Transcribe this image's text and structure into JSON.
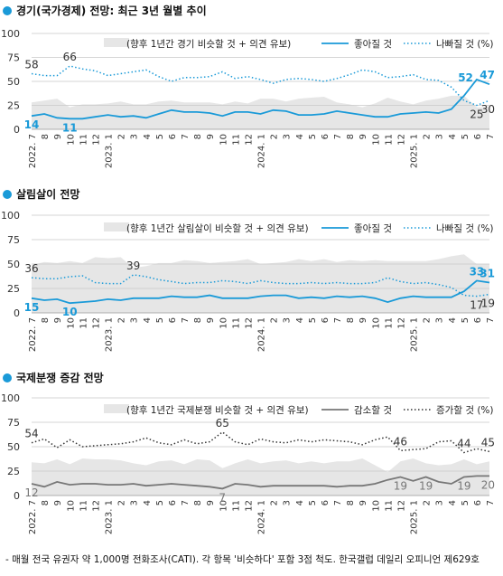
{
  "footnote": "- 매월 전국 유권자 약 1,000명 전화조사(CATI). 각 항목 '비슷하다' 포함 3점 척도. 한국갤럽 데일리 오피니언 제629호",
  "colors": {
    "blue": "#1a9ad8",
    "gray": "#777777",
    "dark": "#333333",
    "band": "#e6e6e6",
    "grid": "#c8c8c8"
  },
  "x_ticks": [
    "2022. 7",
    "8",
    "9",
    "10",
    "11",
    "12",
    "2023. 1",
    "2",
    "3",
    "4",
    "5",
    "6",
    "7",
    "8",
    "9",
    "10",
    "11",
    "12",
    "2024. 1",
    "2",
    "3",
    "4",
    "5",
    "6",
    "7",
    "8",
    "9",
    "10",
    "11",
    "12",
    "2025. 1",
    "2",
    "3",
    "4",
    "5",
    "6",
    "7"
  ],
  "chart_data": [
    {
      "type": "line",
      "title": "경기(국가경제) 전망:  최근 3년 월별 추이",
      "y_ticks": [
        "100",
        "75",
        "50",
        "25",
        "0"
      ],
      "ylim": [
        0,
        100
      ],
      "legend": {
        "band": "(향후 1년간 경기 비슷할 것 + 의견 유보)",
        "solid": "좋아질 것",
        "dotted": "나빠질 것 (%)"
      },
      "solid_color": "blue",
      "dotted_color": "blue",
      "solid": [
        14,
        16,
        12,
        11,
        11,
        13,
        15,
        13,
        14,
        12,
        16,
        20,
        18,
        18,
        17,
        14,
        18,
        18,
        16,
        20,
        19,
        15,
        15,
        16,
        19,
        17,
        15,
        13,
        13,
        16,
        17,
        18,
        17,
        21,
        35,
        52,
        47
      ],
      "dotted": [
        58,
        56,
        56,
        66,
        63,
        61,
        56,
        58,
        60,
        62,
        55,
        50,
        54,
        54,
        55,
        60,
        53,
        55,
        52,
        48,
        52,
        53,
        52,
        50,
        53,
        57,
        62,
        60,
        54,
        55,
        57,
        52,
        51,
        44,
        30,
        25,
        30
      ],
      "band_top": [
        28,
        30,
        32,
        23,
        26,
        26,
        27,
        29,
        26,
        26,
        29,
        30,
        28,
        28,
        28,
        26,
        29,
        27,
        32,
        32,
        29,
        32,
        33,
        34,
        28,
        26,
        23,
        27,
        33,
        29,
        26,
        30,
        32,
        35,
        35,
        23,
        23
      ],
      "labels": [
        {
          "text": "58",
          "series": "dotted",
          "i": 0,
          "pos": "above"
        },
        {
          "text": "14",
          "series": "solid",
          "i": 0,
          "pos": "below"
        },
        {
          "text": "66",
          "series": "dotted",
          "i": 3,
          "pos": "above"
        },
        {
          "text": "11",
          "series": "solid",
          "i": 3,
          "pos": "below"
        },
        {
          "text": "52",
          "series": "solid",
          "i": 35,
          "pos": "left"
        },
        {
          "text": "47",
          "series": "solid",
          "i": 36,
          "pos": "above"
        },
        {
          "text": "25",
          "series": "dotted",
          "i": 35,
          "pos": "below"
        },
        {
          "text": "30",
          "series": "dotted",
          "i": 36,
          "pos": "below"
        }
      ]
    },
    {
      "type": "line",
      "title": "살림살이 전망",
      "y_ticks": [
        "100",
        "75",
        "50",
        "25",
        "0"
      ],
      "ylim": [
        0,
        100
      ],
      "legend": {
        "band": "(향후 1년간 살림살이 비슷할 것 + 의견 유보)",
        "solid": "좋아질 것",
        "dotted": "나빠질 것 (%)"
      },
      "solid_color": "blue",
      "dotted_color": "blue",
      "solid": [
        15,
        13,
        14,
        10,
        11,
        12,
        14,
        13,
        15,
        15,
        15,
        17,
        16,
        16,
        18,
        15,
        15,
        15,
        17,
        18,
        18,
        15,
        16,
        15,
        17,
        16,
        17,
        15,
        11,
        15,
        17,
        16,
        16,
        16,
        22,
        33,
        31
      ],
      "dotted": [
        36,
        35,
        35,
        37,
        38,
        31,
        30,
        30,
        39,
        37,
        34,
        32,
        30,
        31,
        31,
        33,
        32,
        30,
        33,
        31,
        30,
        30,
        31,
        30,
        31,
        30,
        30,
        31,
        36,
        32,
        30,
        31,
        29,
        26,
        18,
        17,
        19
      ],
      "band_top": [
        49,
        52,
        51,
        53,
        51,
        57,
        56,
        57,
        46,
        48,
        51,
        51,
        54,
        53,
        51,
        52,
        53,
        55,
        50,
        51,
        52,
        55,
        53,
        55,
        52,
        54,
        53,
        54,
        53,
        53,
        53,
        53,
        55,
        58,
        60,
        50,
        50
      ],
      "labels": [
        {
          "text": "36",
          "series": "dotted",
          "i": 0,
          "pos": "above"
        },
        {
          "text": "15",
          "series": "solid",
          "i": 0,
          "pos": "below"
        },
        {
          "text": "39",
          "series": "dotted",
          "i": 8,
          "pos": "above"
        },
        {
          "text": "10",
          "series": "solid",
          "i": 3,
          "pos": "below"
        },
        {
          "text": "33",
          "series": "solid",
          "i": 35,
          "pos": "above"
        },
        {
          "text": "31",
          "series": "solid",
          "i": 36,
          "pos": "above"
        },
        {
          "text": "17",
          "series": "dotted",
          "i": 35,
          "pos": "below"
        },
        {
          "text": "19",
          "series": "dotted",
          "i": 36,
          "pos": "below"
        }
      ]
    },
    {
      "type": "line",
      "title": "국제분쟁 증감 전망",
      "y_ticks": [
        "100",
        "75",
        "50",
        "25",
        "0"
      ],
      "ylim": [
        0,
        100
      ],
      "legend": {
        "band": "(향후 1년간 국제분쟁 비슷할 것 + 의견 유보)",
        "solid": "감소할 것",
        "dotted": "증가할 것 (%)"
      },
      "solid_color": "gray",
      "dotted_color": "dark",
      "solid": [
        12,
        9,
        14,
        11,
        12,
        12,
        11,
        11,
        12,
        10,
        11,
        12,
        11,
        10,
        9,
        7,
        12,
        11,
        9,
        10,
        10,
        10,
        10,
        10,
        9,
        10,
        10,
        12,
        16,
        19,
        15,
        19,
        14,
        12,
        19,
        20,
        20
      ],
      "dotted": [
        54,
        58,
        49,
        57,
        50,
        51,
        52,
        53,
        55,
        59,
        54,
        52,
        57,
        53,
        55,
        65,
        55,
        52,
        58,
        55,
        54,
        57,
        55,
        57,
        56,
        55,
        52,
        57,
        60,
        46,
        47,
        48,
        55,
        56,
        44,
        48,
        45
      ],
      "band_top": [
        34,
        33,
        37,
        32,
        38,
        37,
        37,
        36,
        33,
        31,
        35,
        36,
        32,
        37,
        36,
        28,
        33,
        37,
        33,
        35,
        36,
        33,
        35,
        33,
        35,
        35,
        38,
        31,
        24,
        35,
        38,
        33,
        31,
        32,
        37,
        32,
        35
      ],
      "labels": [
        {
          "text": "54",
          "series": "dotted",
          "i": 0,
          "pos": "above"
        },
        {
          "text": "12",
          "series": "solid",
          "i": 0,
          "pos": "below"
        },
        {
          "text": "65",
          "series": "dotted",
          "i": 15,
          "pos": "above"
        },
        {
          "text": "7",
          "series": "solid",
          "i": 15,
          "pos": "below"
        },
        {
          "text": "46",
          "series": "dotted",
          "i": 29,
          "pos": "above"
        },
        {
          "text": "19",
          "series": "solid",
          "i": 29,
          "pos": "below"
        },
        {
          "text": "19",
          "series": "solid",
          "i": 31,
          "pos": "below"
        },
        {
          "text": "44",
          "series": "dotted",
          "i": 34,
          "pos": "above"
        },
        {
          "text": "19",
          "series": "solid",
          "i": 34,
          "pos": "below"
        },
        {
          "text": "45",
          "series": "dotted",
          "i": 36,
          "pos": "above"
        },
        {
          "text": "20",
          "series": "solid",
          "i": 36,
          "pos": "below"
        }
      ]
    }
  ]
}
